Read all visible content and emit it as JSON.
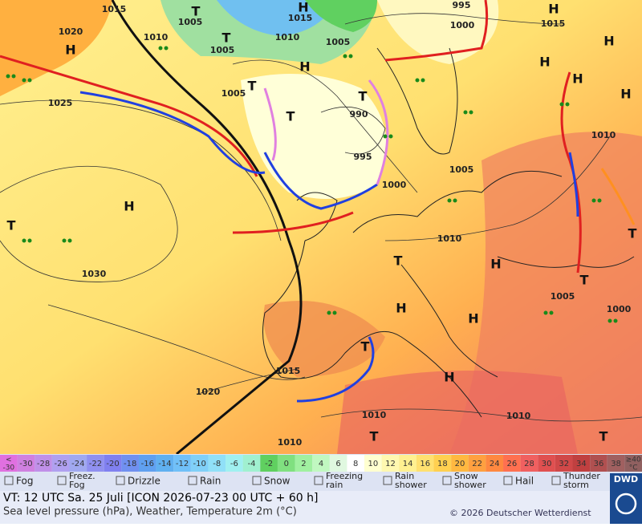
{
  "map": {
    "pressure_labels": [
      "1015",
      "1020",
      "1010",
      "1005",
      "1005",
      "1015",
      "1010",
      "1005",
      "995",
      "1000",
      "1015",
      "1025",
      "1005",
      "990",
      "995",
      "1000",
      "1005",
      "1010",
      "1010",
      "1030",
      "1005",
      "1000",
      "1015",
      "1020",
      "1010",
      "1010",
      "1010"
    ],
    "centers": [
      "H",
      "T",
      "T",
      "H",
      "H",
      "T",
      "T",
      "T",
      "H",
      "H",
      "H",
      "H",
      "H",
      "H",
      "T",
      "T",
      "H",
      "H",
      "T",
      "H",
      "H",
      "T",
      "T",
      "T",
      "T"
    ]
  },
  "legend": {
    "scale": [
      {
        "label": "<",
        "value": -30
      },
      -30,
      -28,
      -26,
      -24,
      -22,
      -20,
      -18,
      -16,
      -14,
      -12,
      -10,
      -8,
      -6,
      -4,
      -2,
      0,
      2,
      4,
      6,
      8,
      10,
      12,
      14,
      16,
      18,
      20,
      22,
      24,
      26,
      28,
      30,
      32,
      34,
      36,
      38,
      {
        "label": "≥40",
        "unit": "°C"
      }
    ],
    "colors": [
      "#e070e0",
      "#d080e0",
      "#c090e8",
      "#b0a0f0",
      "#a0a8f0",
      "#9090f0",
      "#8080f0",
      "#7090f0",
      "#60a0f0",
      "#60b0f0",
      "#70c0f8",
      "#80d0f8",
      "#90e0f8",
      "#a0f0f0",
      "#a0f0d0",
      "#60d060",
      "#80e080",
      "#a0f0a0",
      "#c0f8c0",
      "#e0f8e0",
      "#ffffff",
      "#ffffd0",
      "#fff8b0",
      "#fff090",
      "#ffe070",
      "#ffd050",
      "#ffb840",
      "#ffa040",
      "#ff8840",
      "#ff7050",
      "#f06060",
      "#e05050",
      "#d04848",
      "#c04040",
      "#b05050",
      "#a06060",
      "#906060"
    ],
    "weather": [
      "Fog",
      "Freez. Fog",
      "Drizzle",
      "Rain",
      "Snow",
      "Freezing rain",
      "Rain shower",
      "Snow shower",
      "Hail",
      "Thunder storm"
    ]
  },
  "footer": {
    "valid_time": "VT: 12 UTC Sa.  25 Juli [ICON 2026-07-23  00 UTC + 60 h]",
    "description": "Sea level pressure (hPa), Weather, Temperature 2m (°C)",
    "copyright": "© 2026 Deutscher Wetterdienst",
    "logo": "DWD"
  }
}
